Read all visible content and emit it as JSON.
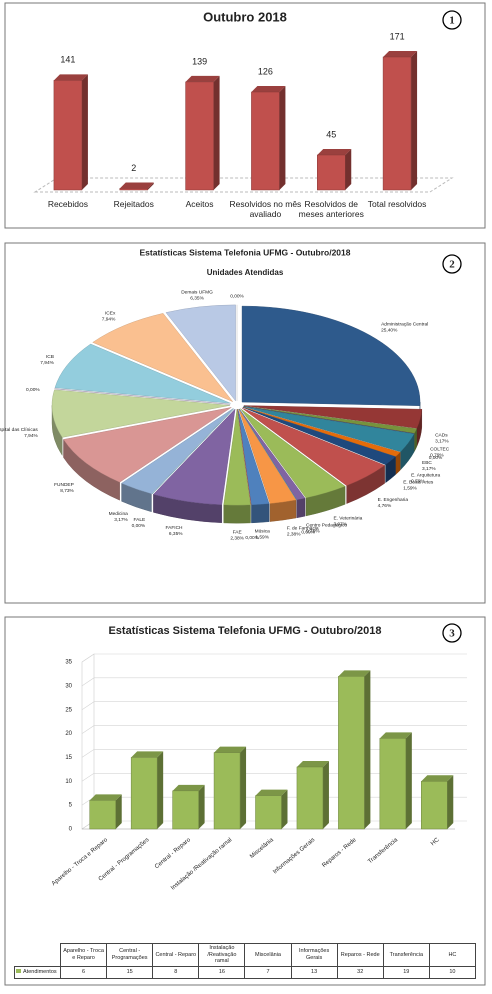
{
  "chart_data": [
    {
      "type": "bar",
      "badge": "1",
      "title": "Outubro 2018",
      "categories": [
        "Recebidos",
        "Rejeitados",
        "Aceitos",
        "Resolvidos no mês avaliado",
        "Resolvidos de meses anteriores",
        "Total resolvidos"
      ],
      "values": [
        141,
        2,
        139,
        126,
        45,
        171
      ],
      "color": "#c0504d"
    },
    {
      "type": "pie",
      "badge": "2",
      "title": "Estatísticas Sistema Telefonia UFMG - Outubro/2018",
      "subtitle": "Unidades Atendidas",
      "categories": [
        "Administração Central",
        "CADs",
        "COLTEC",
        null,
        "EBC",
        "E. Arquitetura",
        "E. Belas Artes",
        "E. Engenharia",
        "E. Veterinária",
        "Centro Pedagógico",
        null,
        "F. de Farmácia",
        "Música",
        null,
        "FAE",
        "FAFICH",
        "FALE",
        "Medicina",
        "FUNDEP",
        "Hospital das Clínicas",
        null,
        "ICB",
        "ICEx",
        "Demais UFMG",
        null
      ],
      "values": [
        25.4,
        3.17,
        0.79,
        0,
        3.17,
        0.79,
        1.59,
        4.76,
        3.97,
        0.79,
        0,
        2.38,
        1.59,
        0,
        2.38,
        6.35,
        0,
        3.17,
        8.73,
        7.94,
        0,
        7.94,
        7.94,
        6.35,
        0
      ],
      "value_labels": [
        "25,40%",
        "3,17%",
        "0,79%",
        "0,00%",
        "3,17%",
        "0,79%",
        "1,59%",
        "4,76%",
        "3,97%",
        "0,79%",
        "0,00%",
        "2,38%",
        "1,59%",
        "0,00%",
        "2,38%",
        "6,35%",
        "0,00%",
        "3,17%",
        "8,73%",
        "7,94%",
        "0,00%",
        "7,94%",
        "7,94%",
        "6,35%",
        "0,00%"
      ],
      "colors": [
        "#2e5a8c",
        "#953735",
        "#77933c",
        "#5f497a",
        "#31859c",
        "#e46c0a",
        "#1f497d",
        "#c0504d",
        "#9bbb59",
        "#8064a2",
        "#4bacc6",
        "#f79646",
        "#4f81bd",
        "#c0504d",
        "#9bbb59",
        "#8064a2",
        "#4bacc6",
        "#95b3d7",
        "#d99694",
        "#c3d69b",
        "#b3a2c7",
        "#93cddd",
        "#fac090",
        "#b9c9e5",
        "#ffffff"
      ]
    },
    {
      "type": "bar",
      "badge": "3",
      "title": "Estatísticas Sistema Telefonia UFMG - Outubro/2018",
      "categories": [
        "Aparelho - Troca e Reparo",
        "Central - Programações",
        "Central - Reparo",
        "Instalação /Reativação ramal",
        "Miscelânia",
        "Informações Gerais",
        "Reparos - Rede",
        "Transferência",
        "HC"
      ],
      "series": [
        {
          "name": "Atendimentos",
          "color": "#9bbb59",
          "values": [
            6,
            15,
            8,
            16,
            7,
            13,
            32,
            19,
            10
          ]
        }
      ],
      "ylim": [
        0,
        35
      ],
      "yticks": [
        0,
        5,
        10,
        15,
        20,
        25,
        30,
        35
      ],
      "grid": true,
      "data_table": true
    }
  ]
}
